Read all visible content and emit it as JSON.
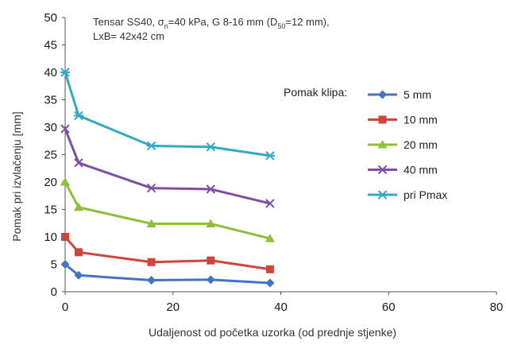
{
  "chart_data": {
    "type": "line",
    "annotation": {
      "line1_a": "Tensar SS40, σ",
      "line1_sub1": "n",
      "line1_b": "=40 kPa, G 8-16 mm (D",
      "line1_sub2": "50",
      "line1_c": "=12 mm),",
      "line2": "LxB= 42x42 cm"
    },
    "xlabel": "Udaljenost od početka uzorka (od prednje stjenke)",
    "ylabel": "Pomak pri izvlačenju [mm]",
    "xlim": [
      0,
      80
    ],
    "ylim": [
      0,
      50
    ],
    "xticks": [
      "0",
      "20",
      "40",
      "60",
      "80"
    ],
    "yticks": [
      "0",
      "5",
      "10",
      "15",
      "20",
      "25",
      "30",
      "35",
      "40",
      "45",
      "50"
    ],
    "grid": false,
    "legend_title": "Pomak klipa:",
    "legend_position": "right",
    "x": [
      0,
      2.5,
      16,
      27,
      38
    ],
    "series": [
      {
        "name": "5 mm",
        "color": "#4472c4",
        "marker": "diamond",
        "values": [
          5.0,
          3.0,
          2.1,
          2.2,
          1.6
        ]
      },
      {
        "name": "10 mm",
        "color": "#d0453a",
        "marker": "square",
        "values": [
          10.0,
          7.2,
          5.4,
          5.7,
          4.1
        ]
      },
      {
        "name": "20 mm",
        "color": "#8fbe3d",
        "marker": "triangle",
        "values": [
          20.0,
          15.4,
          12.4,
          12.4,
          9.7
        ]
      },
      {
        "name": "40 mm",
        "color": "#7d4ea3",
        "marker": "x",
        "values": [
          29.7,
          23.5,
          18.9,
          18.7,
          16.1
        ]
      },
      {
        "name": "pri Pmax",
        "color": "#34a9c4",
        "marker": "asterisk",
        "values": [
          40.0,
          32.1,
          26.6,
          26.4,
          24.8
        ]
      }
    ]
  }
}
